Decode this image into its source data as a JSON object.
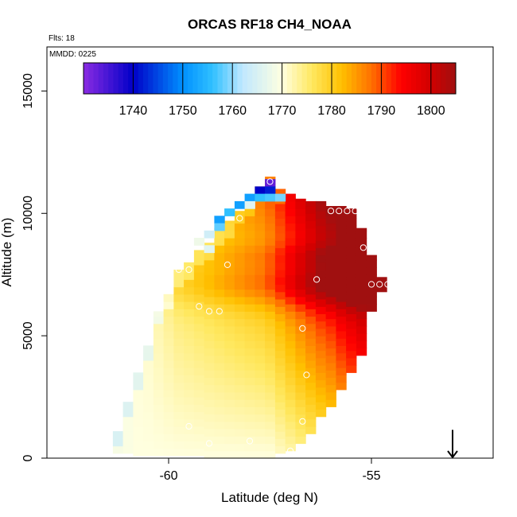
{
  "chart_data": {
    "type": "heatmap",
    "title": "ORCAS RF18 CH4_NOAA",
    "flights_note": "Flts: 18",
    "date_note": "MMDD: 0225",
    "xlabel": "Latitude (deg N)",
    "ylabel": "Altitude (m)",
    "xlim": [
      -63.0,
      -52.0
    ],
    "ylim": [
      0,
      16800
    ],
    "x_ticks": [
      -60,
      -55
    ],
    "x_tick_labels": [
      "-60",
      "-55"
    ],
    "y_ticks": [
      0,
      5000,
      10000,
      15000
    ],
    "y_tick_labels": [
      "0",
      "5000",
      "10000",
      "15000"
    ],
    "colorbar": {
      "range": [
        1730,
        1805
      ],
      "ticks": [
        1740,
        1750,
        1760,
        1770,
        1780,
        1790,
        1800
      ],
      "tick_labels": [
        "1740",
        "1750",
        "1760",
        "1770",
        "1780",
        "1790",
        "1800"
      ],
      "stops": [
        {
          "value": 1730,
          "color": "#8a2be2"
        },
        {
          "value": 1740,
          "color": "#0000c8"
        },
        {
          "value": 1750,
          "color": "#0090ff"
        },
        {
          "value": 1756,
          "color": "#30c0ff"
        },
        {
          "value": 1762,
          "color": "#c0e8ff"
        },
        {
          "value": 1770,
          "color": "#ffffe0"
        },
        {
          "value": 1776,
          "color": "#ffe860"
        },
        {
          "value": 1782,
          "color": "#ffc000"
        },
        {
          "value": 1788,
          "color": "#ff7000"
        },
        {
          "value": 1794,
          "color": "#ff0000"
        },
        {
          "value": 1800,
          "color": "#d00000"
        },
        {
          "value": 1805,
          "color": "#a01010"
        }
      ]
    },
    "cell_size": {
      "dlat": 0.25,
      "dalt": 300
    },
    "columns": [
      {
        "lat": -61.25,
        "alt_min": 200,
        "alt_max": 1100,
        "base": 1769,
        "gradient": 0
      },
      {
        "lat": -61.0,
        "alt_min": 200,
        "alt_max": 2300,
        "base": 1769.5,
        "gradient": 0
      },
      {
        "lat": -60.75,
        "alt_min": 100,
        "alt_max": 3500,
        "base": 1770,
        "gradient": 0.0001
      },
      {
        "lat": -60.5,
        "alt_min": 100,
        "alt_max": 4600,
        "base": 1770,
        "gradient": 0.0002
      },
      {
        "lat": -60.25,
        "alt_min": 100,
        "alt_max": 6000,
        "base": 1770,
        "gradient": 0.0004
      },
      {
        "lat": -60.0,
        "alt_min": 100,
        "alt_max": 6700,
        "base": 1770,
        "gradient": 0.0006
      },
      {
        "lat": -59.75,
        "alt_min": 100,
        "alt_max": 7700,
        "base": 1770,
        "gradient": 0.0008
      },
      {
        "lat": -59.5,
        "alt_min": 100,
        "alt_max": 8000,
        "base": 1770,
        "gradient": 0.0009
      },
      {
        "lat": -59.25,
        "alt_min": 100,
        "alt_max": 8500,
        "base": 1770,
        "gradient": 0.001
      },
      {
        "lat": -59.0,
        "alt_min": 0,
        "alt_max": 8800,
        "base": 1770,
        "gradient": 0.0011
      },
      {
        "lat": -58.75,
        "alt_min": 0,
        "alt_max": 9400,
        "base": 1770,
        "gradient": 0.0012
      },
      {
        "lat": -58.5,
        "alt_min": 0,
        "alt_max": 9700,
        "base": 1770,
        "gradient": 0.0013
      },
      {
        "lat": -58.25,
        "alt_min": 0,
        "alt_max": 10100,
        "base": 1770,
        "gradient": 0.0014
      },
      {
        "lat": -58.0,
        "alt_min": 0,
        "alt_max": 10500,
        "base": 1770,
        "gradient": 0.0015
      },
      {
        "lat": -57.75,
        "alt_min": 0,
        "alt_max": 11100,
        "base": 1770,
        "gradient": 0.0016
      },
      {
        "lat": -57.5,
        "alt_min": 0,
        "alt_max": 11500,
        "base": 1770,
        "gradient": 0.0018
      },
      {
        "lat": -57.25,
        "alt_min": 200,
        "alt_max": 11000,
        "base": 1771,
        "gradient": 0.002
      },
      {
        "lat": -57.0,
        "alt_min": 300,
        "alt_max": 10800,
        "base": 1772,
        "gradient": 0.0022
      },
      {
        "lat": -56.75,
        "alt_min": 600,
        "alt_max": 10600,
        "base": 1773,
        "gradient": 0.0024
      },
      {
        "lat": -56.5,
        "alt_min": 1000,
        "alt_max": 10500,
        "base": 1774,
        "gradient": 0.0026
      },
      {
        "lat": -56.25,
        "alt_min": 1700,
        "alt_max": 10500,
        "base": 1775,
        "gradient": 0.0028
      },
      {
        "lat": -56.0,
        "alt_min": 2100,
        "alt_max": 10300,
        "base": 1776,
        "gradient": 0.0029
      },
      {
        "lat": -55.75,
        "alt_min": 2800,
        "alt_max": 10300,
        "base": 1778,
        "gradient": 0.003
      },
      {
        "lat": -55.5,
        "alt_min": 3500,
        "alt_max": 10200,
        "base": 1780,
        "gradient": 0.003
      },
      {
        "lat": -55.25,
        "alt_min": 4200,
        "alt_max": 9400,
        "base": 1782,
        "gradient": 0.003
      },
      {
        "lat": -55.0,
        "alt_min": 6000,
        "alt_max": 8300,
        "base": 1786,
        "gradient": 0.0025
      },
      {
        "lat": -54.75,
        "alt_min": 6800,
        "alt_max": 7400,
        "base": 1790,
        "gradient": 0.0015
      }
    ],
    "low_cells": [
      {
        "lat": -57.5,
        "alt": 11250,
        "value": 1733
      },
      {
        "lat": -57.75,
        "alt": 10950,
        "value": 1740
      },
      {
        "lat": -57.5,
        "alt": 10950,
        "value": 1742
      },
      {
        "lat": -58.0,
        "alt": 10650,
        "value": 1752
      },
      {
        "lat": -57.75,
        "alt": 10650,
        "value": 1756
      },
      {
        "lat": -57.5,
        "alt": 10650,
        "value": 1757
      },
      {
        "lat": -57.25,
        "alt": 10650,
        "value": 1759
      },
      {
        "lat": -58.25,
        "alt": 10350,
        "value": 1752
      },
      {
        "lat": -58.0,
        "alt": 10350,
        "value": 1766
      },
      {
        "lat": -58.5,
        "alt": 10050,
        "value": 1756
      },
      {
        "lat": -58.75,
        "alt": 9750,
        "value": 1752
      },
      {
        "lat": -58.75,
        "alt": 9450,
        "value": 1758
      },
      {
        "lat": -59.0,
        "alt": 9150,
        "value": 1764
      },
      {
        "lat": -59.25,
        "alt": 8850,
        "value": 1768
      },
      {
        "lat": -59.0,
        "alt": 8550,
        "value": 1766
      }
    ],
    "bands": [
      {
        "alt": 7100,
        "width": 900,
        "boost": 12
      },
      {
        "alt": 8300,
        "width": 500,
        "boost": 5
      }
    ],
    "flight_points": [
      {
        "lat": -57.5,
        "alt": 11300
      },
      {
        "lat": -58.25,
        "alt": 9800
      },
      {
        "lat": -56.0,
        "alt": 10100
      },
      {
        "lat": -55.8,
        "alt": 10100
      },
      {
        "lat": -55.6,
        "alt": 10100
      },
      {
        "lat": -55.4,
        "alt": 10100
      },
      {
        "lat": -55.2,
        "alt": 8600
      },
      {
        "lat": -55.0,
        "alt": 7100
      },
      {
        "lat": -54.8,
        "alt": 7100
      },
      {
        "lat": -54.6,
        "alt": 7100
      },
      {
        "lat": -58.55,
        "alt": 7900
      },
      {
        "lat": -59.5,
        "alt": 7700
      },
      {
        "lat": -59.75,
        "alt": 7700
      },
      {
        "lat": -60.0,
        "alt": 7700
      },
      {
        "lat": -60.25,
        "alt": 7100
      },
      {
        "lat": -56.35,
        "alt": 7300
      },
      {
        "lat": -59.25,
        "alt": 6200
      },
      {
        "lat": -59.0,
        "alt": 6000
      },
      {
        "lat": -58.75,
        "alt": 6000
      },
      {
        "lat": -56.7,
        "alt": 5300
      },
      {
        "lat": -56.6,
        "alt": 3400
      },
      {
        "lat": -56.7,
        "alt": 1500
      },
      {
        "lat": -57.0,
        "alt": 300
      },
      {
        "lat": -58.0,
        "alt": 700
      },
      {
        "lat": -59.5,
        "alt": 1300
      },
      {
        "lat": -59.0,
        "alt": 600
      }
    ],
    "annotation": {
      "type": "arrow-down",
      "lat": -53.0,
      "alt_top": 700,
      "alt_bottom": 0
    }
  }
}
